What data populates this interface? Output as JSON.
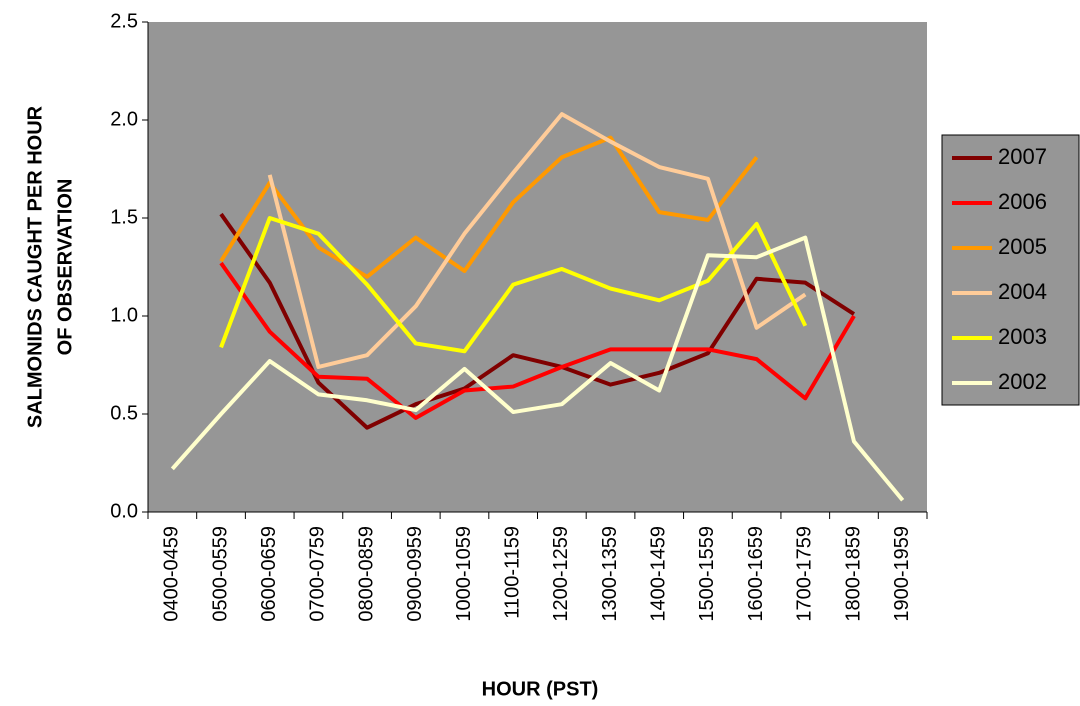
{
  "chart_data": {
    "type": "line",
    "x_label": "HOUR (PST)",
    "y_label": [
      "SALMONIDS CAUGHT PER HOUR",
      "OF OBSERVATION"
    ],
    "categories": [
      "0400-0459",
      "0500-0559",
      "0600-0659",
      "0700-0759",
      "0800-0859",
      "0900-0959",
      "1000-1059",
      "1100-1159",
      "1200-1259",
      "1300-1359",
      "1400-1459",
      "1500-1559",
      "1600-1659",
      "1700-1759",
      "1800-1859",
      "1900-1959"
    ],
    "series": [
      {
        "name": "2007",
        "color": "#800000",
        "values": [
          null,
          1.52,
          1.17,
          0.66,
          0.43,
          0.55,
          0.63,
          0.8,
          0.74,
          0.65,
          0.71,
          0.81,
          1.19,
          1.17,
          1.01,
          null
        ]
      },
      {
        "name": "2006",
        "color": "#ff0000",
        "values": [
          null,
          1.27,
          0.92,
          0.69,
          0.68,
          0.48,
          0.62,
          0.64,
          0.74,
          0.83,
          0.83,
          0.83,
          0.78,
          0.58,
          1.0,
          null
        ]
      },
      {
        "name": "2005",
        "color": "#ff9900",
        "values": [
          null,
          1.28,
          1.68,
          1.35,
          1.2,
          1.4,
          1.23,
          1.58,
          1.81,
          1.91,
          1.53,
          1.49,
          1.81,
          null,
          null,
          null
        ]
      },
      {
        "name": "2004",
        "color": "#ffcc99",
        "values": [
          null,
          null,
          1.72,
          0.74,
          0.8,
          1.05,
          1.42,
          1.73,
          2.03,
          1.89,
          1.76,
          1.7,
          0.94,
          1.11,
          null,
          null
        ]
      },
      {
        "name": "2003",
        "color": "#ffff00",
        "values": [
          null,
          0.84,
          1.5,
          1.42,
          1.16,
          0.86,
          0.82,
          1.16,
          1.24,
          1.14,
          1.08,
          1.18,
          1.47,
          0.95,
          null,
          null
        ]
      },
      {
        "name": "2002",
        "color": "#ffffcc",
        "values": [
          0.22,
          0.5,
          0.77,
          0.6,
          0.57,
          0.52,
          0.73,
          0.51,
          0.55,
          0.76,
          0.62,
          1.31,
          1.3,
          1.4,
          0.36,
          0.06
        ]
      }
    ],
    "ylim": [
      0,
      2.5
    ],
    "yticks": [
      {
        "value": 0,
        "label": "0.0"
      },
      0.5,
      {
        "value": 1,
        "label": "1.0"
      },
      1.5,
      {
        "value": 2,
        "label": "2.0"
      },
      2.5
    ],
    "plot_background": "#969696",
    "legend": "right"
  }
}
